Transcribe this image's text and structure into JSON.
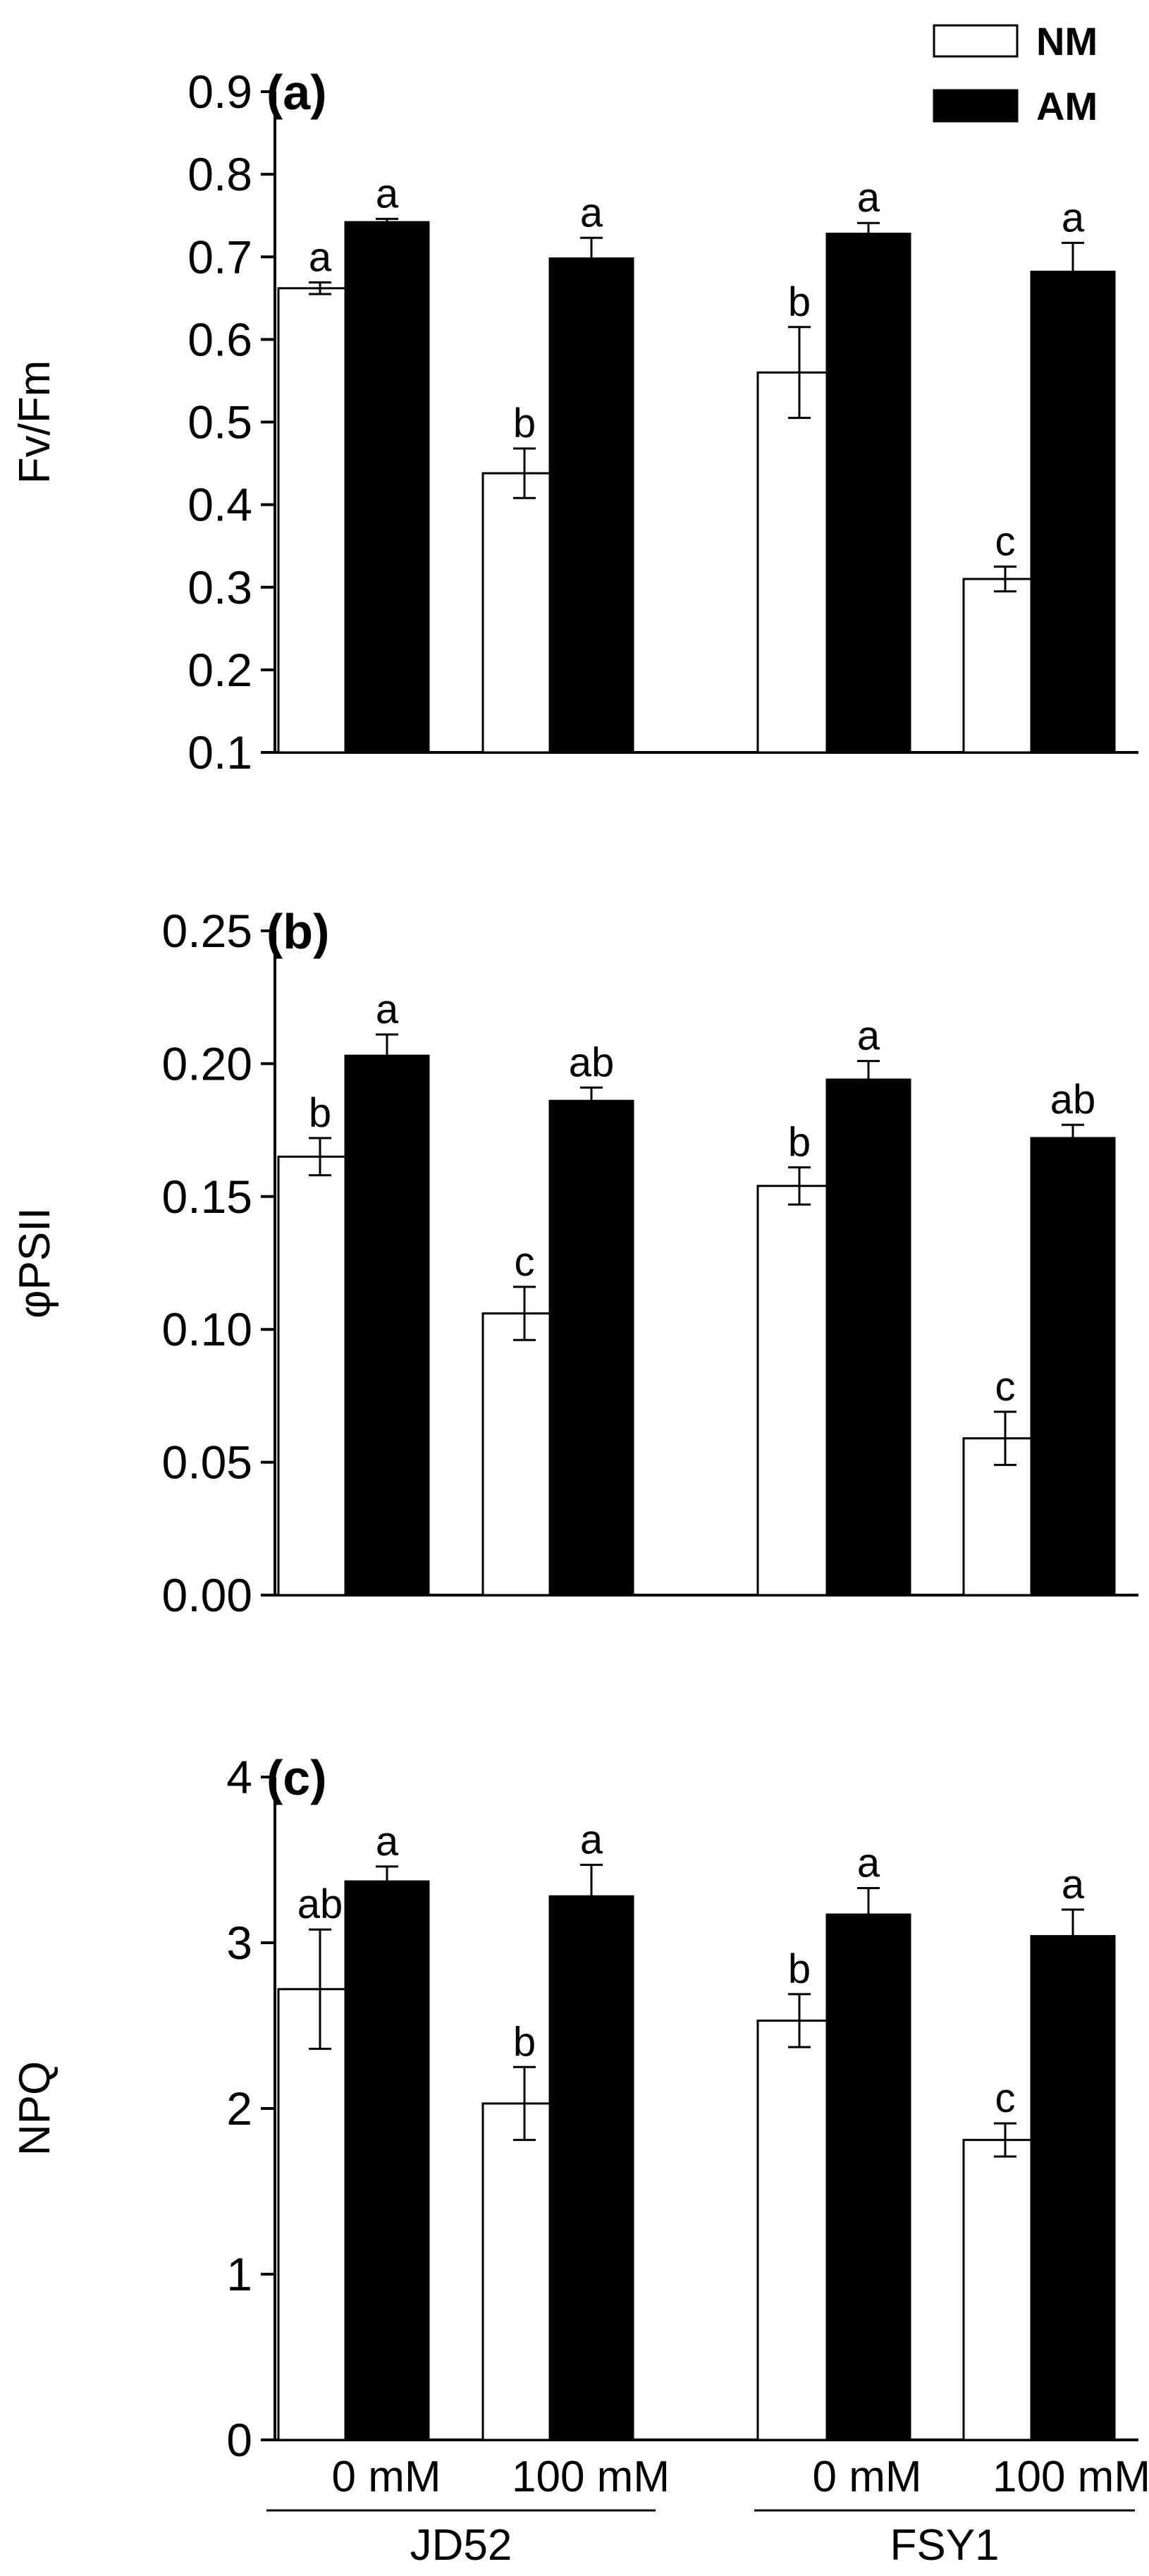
{
  "legend": {
    "items": [
      {
        "name": "NM",
        "color": "#ffffff",
        "stroke": "#000000"
      },
      {
        "name": "AM",
        "color": "#000000",
        "stroke": "#000000"
      }
    ],
    "placement": "top-right"
  },
  "x_axis": {
    "categories": [
      "0 mM",
      "100 mM",
      "0 mM",
      "100 mM"
    ],
    "groups": [
      {
        "name": "JD52",
        "categories": [
          0,
          1
        ]
      },
      {
        "name": "FSY1",
        "categories": [
          2,
          3
        ]
      }
    ]
  },
  "colors": {
    "nm_fill": "#ffffff",
    "am_fill": "#000000",
    "stroke": "#000000"
  },
  "chart_data": [
    {
      "type": "bar",
      "panel": "(a)",
      "ylabel": "Fv/Fm",
      "ylim": [
        0.1,
        0.9
      ],
      "yticks": [
        "0.1",
        "0.2",
        "0.3",
        "0.4",
        "0.5",
        "0.6",
        "0.7",
        "0.8",
        "0.9"
      ],
      "categories": [
        "0 mM",
        "100 mM",
        "0 mM",
        "100 mM"
      ],
      "series": [
        {
          "name": "NM",
          "values": [
            0.662,
            0.438,
            0.56,
            0.31
          ],
          "errors": [
            0.007,
            0.03,
            0.055,
            0.015
          ],
          "labels": [
            "a",
            "b",
            "b",
            "c"
          ]
        },
        {
          "name": "AM",
          "values": [
            0.742,
            0.698,
            0.728,
            0.682
          ],
          "errors": [
            0.004,
            0.025,
            0.013,
            0.035
          ],
          "labels": [
            "a",
            "a",
            "a",
            "a"
          ]
        }
      ]
    },
    {
      "type": "bar",
      "panel": "(b)",
      "ylabel": "φPSII",
      "ylim": [
        0.0,
        0.25
      ],
      "yticks": [
        "0.00",
        "0.05",
        "0.10",
        "0.15",
        "0.20",
        "0.25"
      ],
      "categories": [
        "0 mM",
        "100 mM",
        "0 mM",
        "100 mM"
      ],
      "series": [
        {
          "name": "NM",
          "values": [
            0.165,
            0.106,
            0.154,
            0.059
          ],
          "errors": [
            0.007,
            0.01,
            0.007,
            0.01
          ],
          "labels": [
            "b",
            "c",
            "b",
            "c"
          ]
        },
        {
          "name": "AM",
          "values": [
            0.203,
            0.186,
            0.194,
            0.172
          ],
          "errors": [
            0.008,
            0.005,
            0.007,
            0.005
          ],
          "labels": [
            "a",
            "ab",
            "a",
            "ab"
          ]
        }
      ]
    },
    {
      "type": "bar",
      "panel": "(c)",
      "ylabel": "NPQ",
      "ylim": [
        0,
        4
      ],
      "yticks": [
        "0",
        "1",
        "2",
        "3",
        "4"
      ],
      "categories": [
        "0 mM",
        "100 mM",
        "0 mM",
        "100 mM"
      ],
      "series": [
        {
          "name": "NM",
          "values": [
            2.72,
            2.03,
            2.53,
            1.81
          ],
          "errors": [
            0.36,
            0.22,
            0.16,
            0.1
          ],
          "labels": [
            "ab",
            "b",
            "b",
            "c"
          ]
        },
        {
          "name": "AM",
          "values": [
            3.37,
            3.28,
            3.17,
            3.04
          ],
          "errors": [
            0.09,
            0.19,
            0.16,
            0.16
          ],
          "labels": [
            "a",
            "a",
            "a",
            "a"
          ]
        }
      ]
    }
  ]
}
